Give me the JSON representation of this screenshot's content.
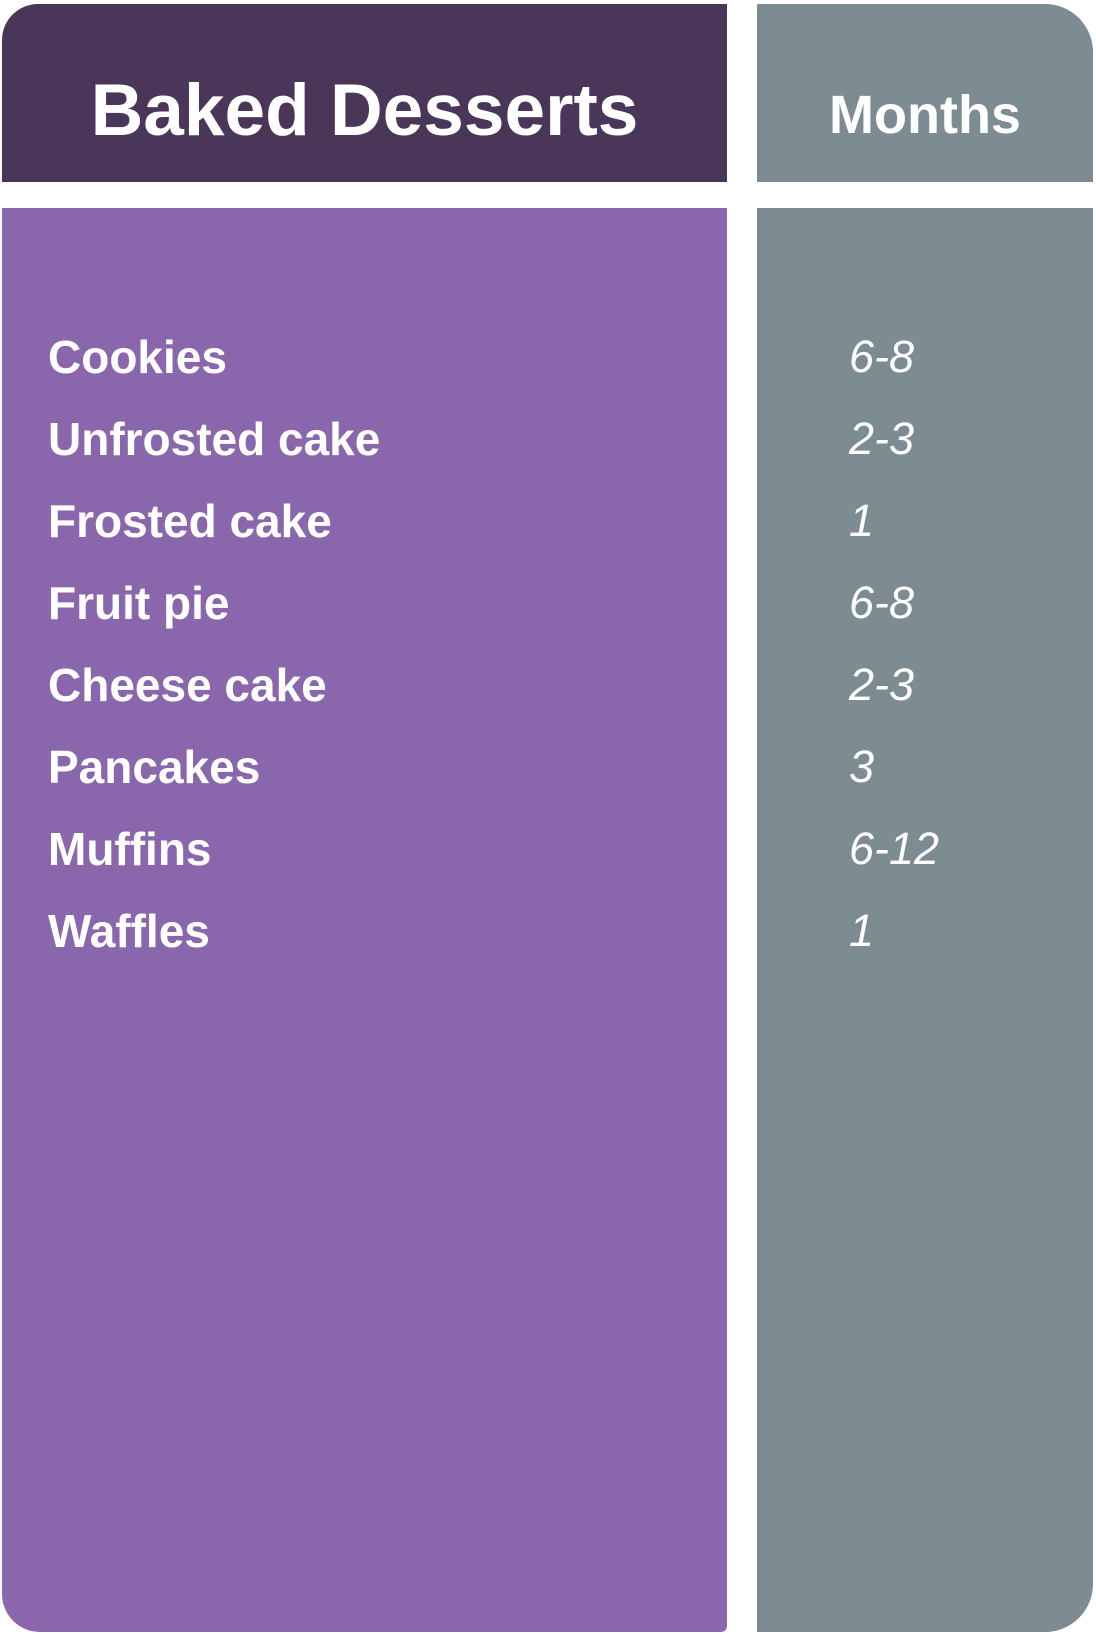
{
  "header": {
    "left_label": "Baked Desserts",
    "right_label": "Months"
  },
  "chart_data": {
    "type": "table",
    "title": "Baked Desserts storage table",
    "columns": [
      "Baked Desserts",
      "Months"
    ],
    "rows": [
      {
        "item": "Cookies",
        "months": "6-8"
      },
      {
        "item": "Unfrosted cake",
        "months": "2-3"
      },
      {
        "item": "Frosted cake",
        "months": "1"
      },
      {
        "item": "Fruit pie",
        "months": "6-8"
      },
      {
        "item": "Cheese cake",
        "months": "2-3"
      },
      {
        "item": "Pancakes",
        "months": "3"
      },
      {
        "item": "Muffins",
        "months": "6-12"
      },
      {
        "item": "Waffles",
        "months": "1"
      }
    ]
  },
  "colors": {
    "header_purple": "#493659",
    "body_purple": "#8A67AC",
    "slate_gray": "#7D8B93",
    "text_white": "#FFFFFF"
  }
}
